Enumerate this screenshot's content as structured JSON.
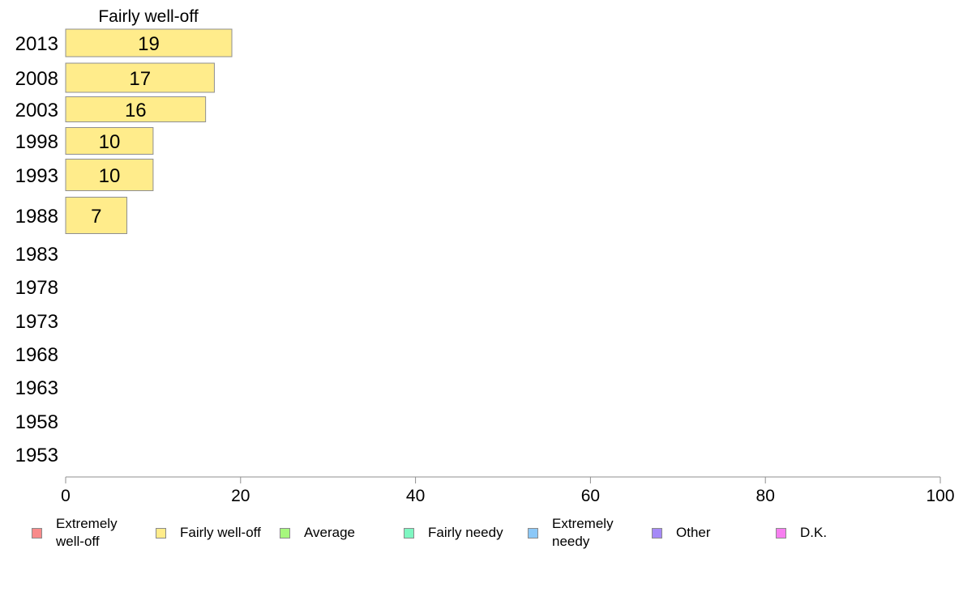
{
  "chart_data": {
    "type": "bar",
    "orientation": "horizontal",
    "title": "Fairly well-off",
    "categories": [
      "2013",
      "2008",
      "2003",
      "1998",
      "1993",
      "1988",
      "1983",
      "1978",
      "1973",
      "1968",
      "1963",
      "1958",
      "1953"
    ],
    "series": [
      {
        "name": "Fairly well-off",
        "color": "#ffec8b",
        "values": [
          19,
          17,
          16,
          10,
          10,
          7,
          null,
          null,
          null,
          null,
          null,
          null,
          null
        ],
        "labels": [
          "19",
          "17",
          "16",
          "10",
          "10",
          "7",
          "",
          "",
          "",
          "",
          "",
          "",
          ""
        ]
      }
    ],
    "xlim": [
      0,
      100
    ],
    "xticks": [
      "0",
      "20",
      "40",
      "60",
      "80",
      "100"
    ],
    "grid": false,
    "legend": {
      "position": "bottom",
      "items": [
        {
          "label": "Extremely well-off",
          "color": "#f88a8a"
        },
        {
          "label": "Fairly well-off",
          "color": "#ffec8b"
        },
        {
          "label": "Average",
          "color": "#a6f77d"
        },
        {
          "label": "Fairly needy",
          "color": "#7ff7c2"
        },
        {
          "label": "Extremely needy",
          "color": "#8cc8f7"
        },
        {
          "label": "Other",
          "color": "#a58af7"
        },
        {
          "label": "D.K.",
          "color": "#f77ef0"
        }
      ]
    }
  }
}
